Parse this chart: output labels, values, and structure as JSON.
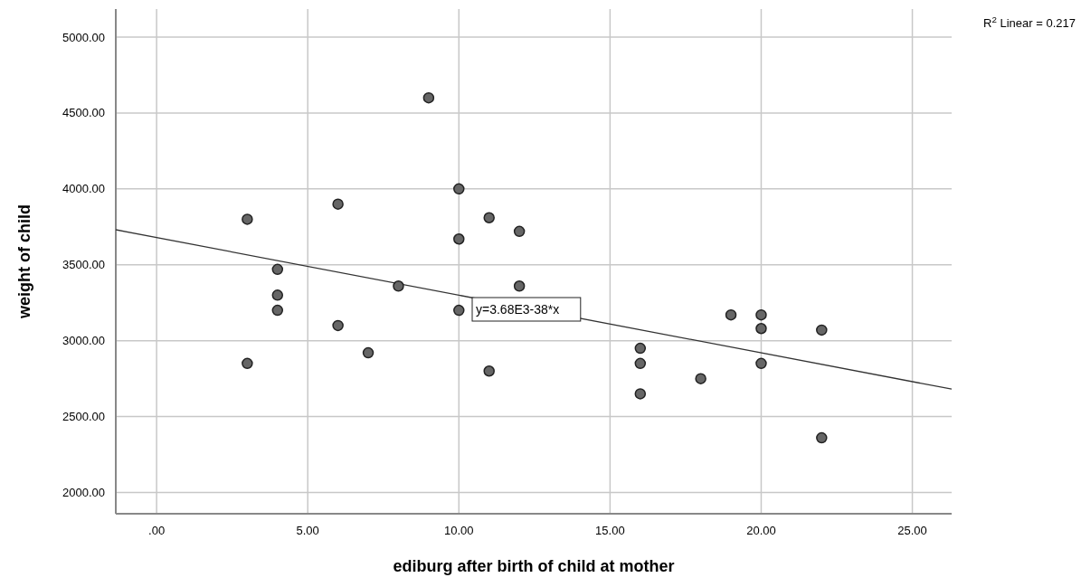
{
  "chart_data": {
    "type": "scatter",
    "xlabel": "ediburg after birth of child at mother",
    "ylabel": "weight of child",
    "xlim": [
      -1.35,
      26.3
    ],
    "ylim": [
      1860,
      5185
    ],
    "xticks": [
      {
        "value": 0,
        "label": ".00"
      },
      {
        "value": 5,
        "label": "5.00"
      },
      {
        "value": 10,
        "label": "10.00"
      },
      {
        "value": 15,
        "label": "15.00"
      },
      {
        "value": 20,
        "label": "20.00"
      },
      {
        "value": 25,
        "label": "25.00"
      }
    ],
    "yticks": [
      {
        "value": 2000,
        "label": "2000.00"
      },
      {
        "value": 2500,
        "label": "2500.00"
      },
      {
        "value": 3000,
        "label": "3000.00"
      },
      {
        "value": 3500,
        "label": "3500.00"
      },
      {
        "value": 4000,
        "label": "4000.00"
      },
      {
        "value": 4500,
        "label": "4500.00"
      },
      {
        "value": 5000,
        "label": "5000.00"
      }
    ],
    "grid": true,
    "series": [
      {
        "color": "#666666",
        "marker": "circle",
        "x": [
          3,
          3,
          4,
          4,
          4,
          6,
          6,
          7,
          8,
          9,
          10,
          10,
          10,
          11,
          11,
          12,
          12,
          16,
          16,
          16,
          18,
          19,
          20,
          20,
          20,
          22,
          22
        ],
        "values": [
          3800,
          2850,
          3470,
          3300,
          3200,
          3900,
          3100,
          2920,
          3360,
          4600,
          4000,
          3670,
          3200,
          3810,
          2800,
          3720,
          3360,
          2950,
          2850,
          2650,
          2750,
          3170,
          3170,
          3080,
          2850,
          3070,
          2360
        ]
      },
      {
        "type": "line",
        "color": "#333333",
        "x": [
          -1.35,
          26.3
        ],
        "values": [
          3731,
          2681
        ],
        "marker": "none"
      }
    ],
    "annotations": [
      "y=3.68E3-38*x",
      "R$^{2}$ Linear = 0.217"
    ]
  }
}
